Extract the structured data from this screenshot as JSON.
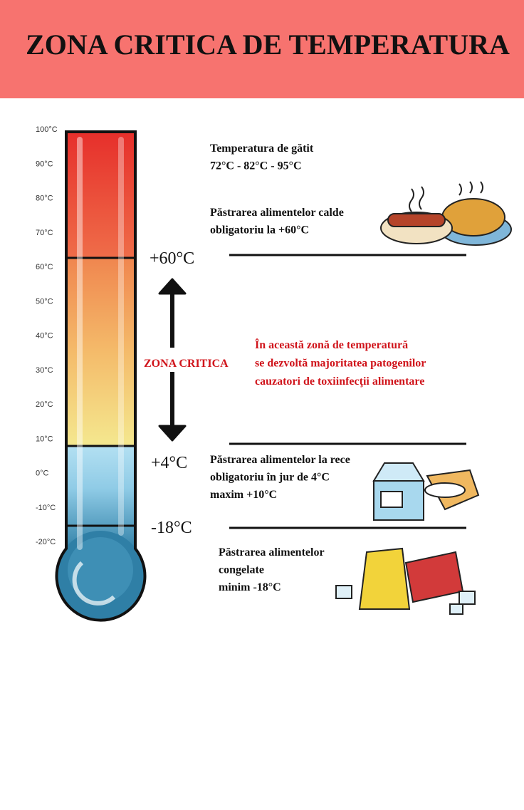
{
  "header": {
    "title": "ZONA CRITICA DE TEMPERATURA"
  },
  "scale": {
    "labels": [
      "100°C",
      "90°C",
      "80°C",
      "70°C",
      "60°C",
      "50°C",
      "40°C",
      "30°C",
      "20°C",
      "10°C",
      "0°C",
      "-10°C",
      "-20°C"
    ]
  },
  "markers": {
    "hot": "+60°C",
    "cold": "+4°C",
    "frozen": "-18°C"
  },
  "zone": {
    "label": "ZONA CRITICA",
    "description": [
      "În această zonă de temperatură",
      "se dezvoltă majoritatea patogenilor",
      "cauzatori de toxiinfecţii alimentare"
    ]
  },
  "notes": [
    {
      "lines": [
        "Temperatura de gătit",
        "72°C - 82°C - 95°C"
      ]
    },
    {
      "lines": [
        "Păstrarea alimentelor calde",
        "obligatoriu la +60°C"
      ]
    },
    {
      "lines": [
        "Păstrarea alimentelor la rece",
        "obligatoriu în jur de 4°C",
        "maxim +10°C"
      ]
    },
    {
      "lines": [
        "Păstrarea alimentelor",
        "congelate",
        "minim -18°C"
      ]
    }
  ]
}
